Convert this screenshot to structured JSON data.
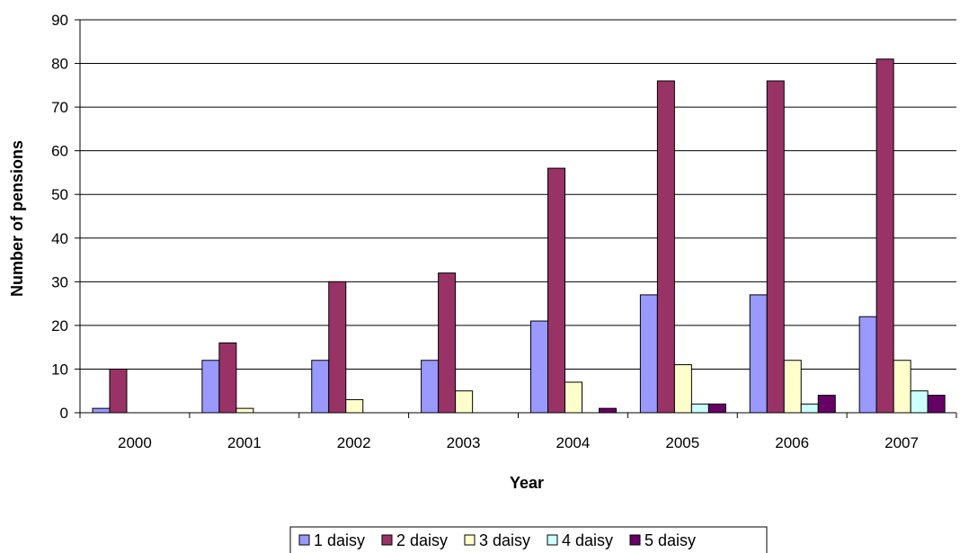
{
  "chart_data": {
    "type": "bar",
    "title": "",
    "xlabel": "Year",
    "ylabel": "Number of pensions",
    "categories": [
      "2000",
      "2001",
      "2002",
      "2003",
      "2004",
      "2005",
      "2006",
      "2007"
    ],
    "ylim": [
      0,
      90
    ],
    "yticks": [
      0,
      10,
      20,
      30,
      40,
      50,
      60,
      70,
      80,
      90
    ],
    "grid": true,
    "legend_position": "bottom",
    "series": [
      {
        "name": "1 daisy",
        "color": "#9999ff",
        "values": [
          1,
          12,
          12,
          12,
          21,
          27,
          27,
          22
        ]
      },
      {
        "name": "2 daisy",
        "color": "#993366",
        "values": [
          10,
          16,
          30,
          32,
          56,
          76,
          76,
          81
        ]
      },
      {
        "name": "3 daisy",
        "color": "#ffffcc",
        "values": [
          0,
          1,
          3,
          5,
          7,
          11,
          12,
          12
        ]
      },
      {
        "name": "4 daisy",
        "color": "#ccffff",
        "values": [
          0,
          0,
          0,
          0,
          0,
          2,
          2,
          5
        ]
      },
      {
        "name": "5 daisy",
        "color": "#660066",
        "values": [
          0,
          0,
          0,
          0,
          1,
          2,
          4,
          4
        ]
      }
    ]
  }
}
